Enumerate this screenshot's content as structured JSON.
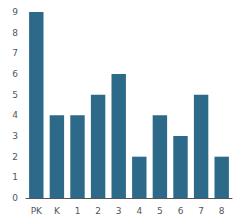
{
  "chart_data": {
    "type": "bar",
    "categories": [
      "PK",
      "K",
      "1",
      "2",
      "3",
      "4",
      "5",
      "6",
      "7",
      "8"
    ],
    "values": [
      9,
      4,
      4,
      5,
      6,
      2,
      4,
      3,
      5,
      2
    ],
    "color": "#2d6a8a",
    "ylim": [
      0,
      9
    ],
    "yticks": [
      0,
      1,
      2,
      3,
      4,
      5,
      6,
      7,
      8,
      9
    ],
    "grid": false
  }
}
